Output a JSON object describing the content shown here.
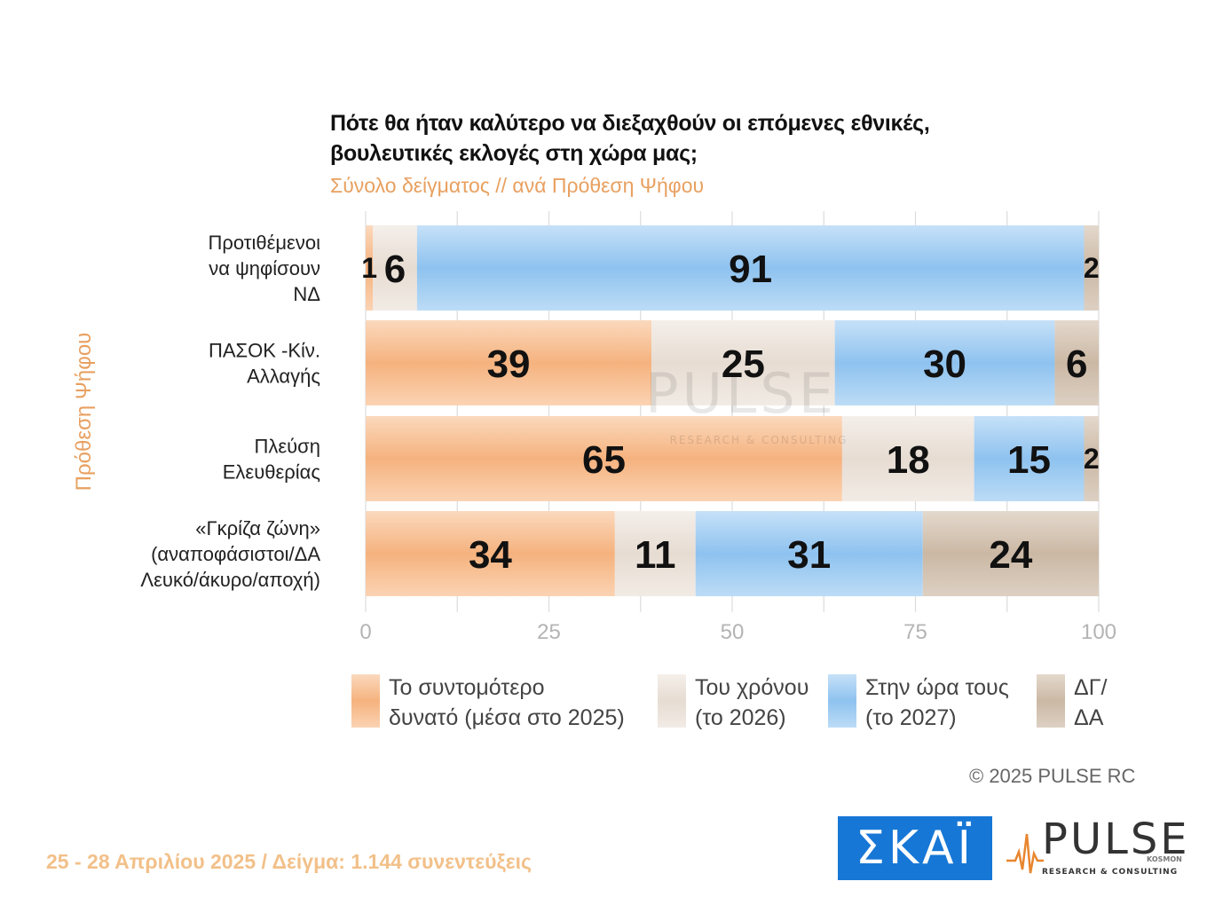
{
  "header": {
    "title": "Πότε θα ήταν καλύτερο να διεξαχθούν οι επόμενες εθνικές, βουλευτικές εκλογές στη χώρα μας;",
    "subtitle": "Σύνολο δείγματος // ανά Πρόθεση Ψήφου"
  },
  "chart_data": {
    "type": "bar",
    "orientation": "horizontal",
    "stacked": true,
    "ylabel": "Πρόθεση Ψήφου",
    "categories": [
      [
        "Προτιθέμενοι",
        "να ψηφίσουν",
        "ΝΔ"
      ],
      [
        "ΠΑΣΟΚ -Κίν.",
        "Αλλαγής"
      ],
      [
        "Πλεύση",
        "Ελευθερίας"
      ],
      [
        "«Γκρίζα ζώνη»",
        "(αναποφάσιστοι/ΔΑ",
        "Λευκό/άκυρο/αποχή)"
      ]
    ],
    "series": [
      {
        "name": [
          "Το συντομότερο",
          "δυνατό (μέσα στο 2025)"
        ],
        "color": "#f5b27e",
        "values": [
          1,
          39,
          65,
          34
        ]
      },
      {
        "name": [
          "Του χρόνου",
          "(το 2026)"
        ],
        "color": "#e8ded4",
        "values": [
          6,
          25,
          18,
          11
        ]
      },
      {
        "name": [
          "Στην ώρα τους",
          "(το 2027)"
        ],
        "color": "#8fc3ef",
        "values": [
          91,
          30,
          15,
          31
        ]
      },
      {
        "name": [
          "ΔΓ/",
          "ΔΑ"
        ],
        "color": "#cdbba8",
        "values": [
          2,
          6,
          2,
          24
        ]
      }
    ],
    "xlim": [
      0,
      100
    ],
    "xticks": [
      0,
      25,
      50,
      75,
      100
    ],
    "grid": true,
    "legend_position": "bottom"
  },
  "watermark": {
    "text": "PULSE",
    "tagline": "RESEARCH & CONSULTING"
  },
  "copyright": "©  2025  PULSE RC",
  "footer": "25 - 28 Απριλίου 2025  /  Δείγμα:  1.144 συνεντεύξεις",
  "logos": {
    "skai": "ΣΚΑΪ",
    "pulse": "PULSE",
    "pulse_sub": "KOSMON",
    "pulse_tagline": "RESEARCH & CONSULTING"
  }
}
